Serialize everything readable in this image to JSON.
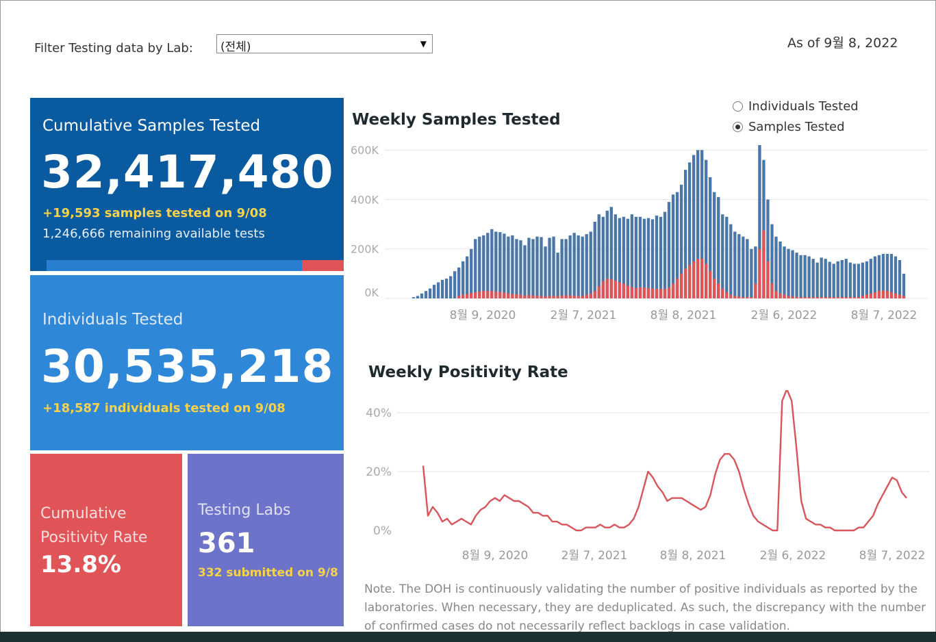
{
  "filter": {
    "label": "Filter Testing data by Lab:",
    "selected": "(전체)"
  },
  "as_of": "As of 9월 8, 2022",
  "tiles": {
    "cumulative_samples": {
      "title": "Cumulative Samples Tested",
      "value": "32,417,480",
      "today": "+19,593 samples tested on 9/08",
      "remaining": "1,246,666 remaining available tests",
      "used_fraction": 0.86
    },
    "individuals": {
      "title": "Individuals Tested",
      "value": "30,535,218",
      "today": "+18,587  individuals  tested on 9/08"
    },
    "positivity": {
      "title": "Cumulative Positivity Rate",
      "value": "13.8%"
    },
    "labs": {
      "title": "Testing Labs",
      "value": "361",
      "submitted": "332 submitted on 9/8"
    }
  },
  "toggle": {
    "options": [
      "Individuals Tested",
      "Samples Tested"
    ],
    "selected": "Samples Tested"
  },
  "colors": {
    "total": "#4a76a8",
    "positive": "#e05458",
    "line": "#d9545b"
  },
  "chart_data": [
    {
      "type": "bar",
      "title": "Weekly Samples Tested",
      "y_ticks": [
        "600K",
        "400K",
        "200K",
        "0K"
      ],
      "ylim": [
        0,
        620000
      ],
      "x_ticks": [
        "8월 9, 2020",
        "2월 7, 2021",
        "8월 8, 2021",
        "2월 6, 2022",
        "8월 7, 2022"
      ],
      "series": [
        {
          "name": "total",
          "values": [
            5000,
            10000,
            20000,
            30000,
            40000,
            55000,
            65000,
            75000,
            80000,
            90000,
            110000,
            125000,
            150000,
            170000,
            200000,
            240000,
            250000,
            255000,
            265000,
            280000,
            270000,
            268000,
            262000,
            250000,
            255000,
            240000,
            235000,
            215000,
            245000,
            240000,
            250000,
            248000,
            210000,
            245000,
            250000,
            185000,
            240000,
            240000,
            255000,
            265000,
            255000,
            250000,
            260000,
            270000,
            310000,
            340000,
            330000,
            355000,
            370000,
            340000,
            325000,
            330000,
            322000,
            340000,
            330000,
            330000,
            322000,
            325000,
            320000,
            335000,
            330000,
            350000,
            390000,
            420000,
            430000,
            460000,
            520000,
            550000,
            580000,
            600000,
            600000,
            560000,
            490000,
            430000,
            410000,
            340000,
            330000,
            300000,
            270000,
            260000,
            250000,
            240000,
            200000,
            210000,
            620000,
            560000,
            400000,
            300000,
            250000,
            230000,
            210000,
            200000,
            195000,
            185000,
            175000,
            175000,
            170000,
            160000,
            145000,
            165000,
            160000,
            148000,
            140000,
            150000,
            155000,
            160000,
            145000,
            140000,
            140000,
            145000,
            150000,
            160000,
            170000,
            175000,
            180000,
            180000,
            180000,
            170000,
            155000,
            100000
          ]
        },
        {
          "name": "positive",
          "values": [
            0,
            0,
            0,
            0,
            0,
            0,
            0,
            0,
            0,
            0,
            0,
            10000,
            15000,
            18000,
            22000,
            25000,
            28000,
            30000,
            30000,
            30000,
            28000,
            26000,
            24000,
            20000,
            18000,
            17000,
            15000,
            12000,
            14000,
            12000,
            11000,
            10000,
            8000,
            10000,
            11000,
            9000,
            12000,
            13000,
            12000,
            11000,
            10000,
            10000,
            15000,
            20000,
            30000,
            50000,
            70000,
            80000,
            78000,
            72000,
            65000,
            60000,
            52000,
            46000,
            42000,
            45000,
            44000,
            42000,
            40000,
            38000,
            38000,
            38000,
            45000,
            60000,
            80000,
            100000,
            120000,
            135000,
            150000,
            160000,
            160000,
            140000,
            110000,
            80000,
            60000,
            40000,
            25000,
            15000,
            10000,
            8000,
            5000,
            5000,
            5000,
            60000,
            200000,
            275000,
            150000,
            60000,
            30000,
            20000,
            15000,
            10000,
            8000,
            6000,
            5000,
            5000,
            5000,
            5000,
            5000,
            5000,
            5000,
            5000,
            5000,
            5000,
            5000,
            5000,
            5000,
            5000,
            5000,
            10000,
            15000,
            20000,
            25000,
            30000,
            32000,
            30000,
            25000,
            20000,
            15000,
            10000
          ]
        }
      ]
    },
    {
      "type": "line",
      "title": "Weekly Positivity Rate",
      "y_ticks": [
        "40%",
        "20%",
        "0%"
      ],
      "ylim": [
        0,
        50
      ],
      "x_ticks": [
        "8월 9, 2020",
        "2월 7, 2021",
        "8월 8, 2021",
        "2월 6, 2022",
        "8월 7, 2022"
      ],
      "series": [
        {
          "name": "positivity",
          "values": [
            22,
            5,
            8,
            6,
            3,
            4,
            2,
            3,
            4,
            3,
            2,
            5,
            7,
            8,
            10,
            11,
            10,
            12,
            11,
            10,
            10,
            9,
            8,
            6,
            6,
            5,
            5,
            3,
            3,
            2,
            2,
            1,
            0,
            0,
            1,
            1,
            1,
            2,
            1,
            1,
            2,
            1,
            1,
            2,
            4,
            8,
            14,
            20,
            18,
            15,
            13,
            10,
            11,
            11,
            11,
            10,
            9,
            8,
            7,
            8,
            12,
            19,
            24,
            26,
            26,
            24,
            20,
            14,
            9,
            5,
            3,
            2,
            1,
            0,
            0,
            44,
            48,
            44,
            28,
            10,
            4,
            3,
            2,
            2,
            1,
            1,
            0,
            0,
            0,
            0,
            0,
            1,
            1,
            3,
            5,
            9,
            12,
            15,
            18,
            17,
            13,
            11
          ]
        }
      ]
    }
  ],
  "note": "Note. The DOH is continuously validating the number of positive individuals as reported by the laboratories. When necessary, they are deduplicated. As such, the discrepancy with the number of confirmed cases do not necessarily reflect backlogs in case validation."
}
